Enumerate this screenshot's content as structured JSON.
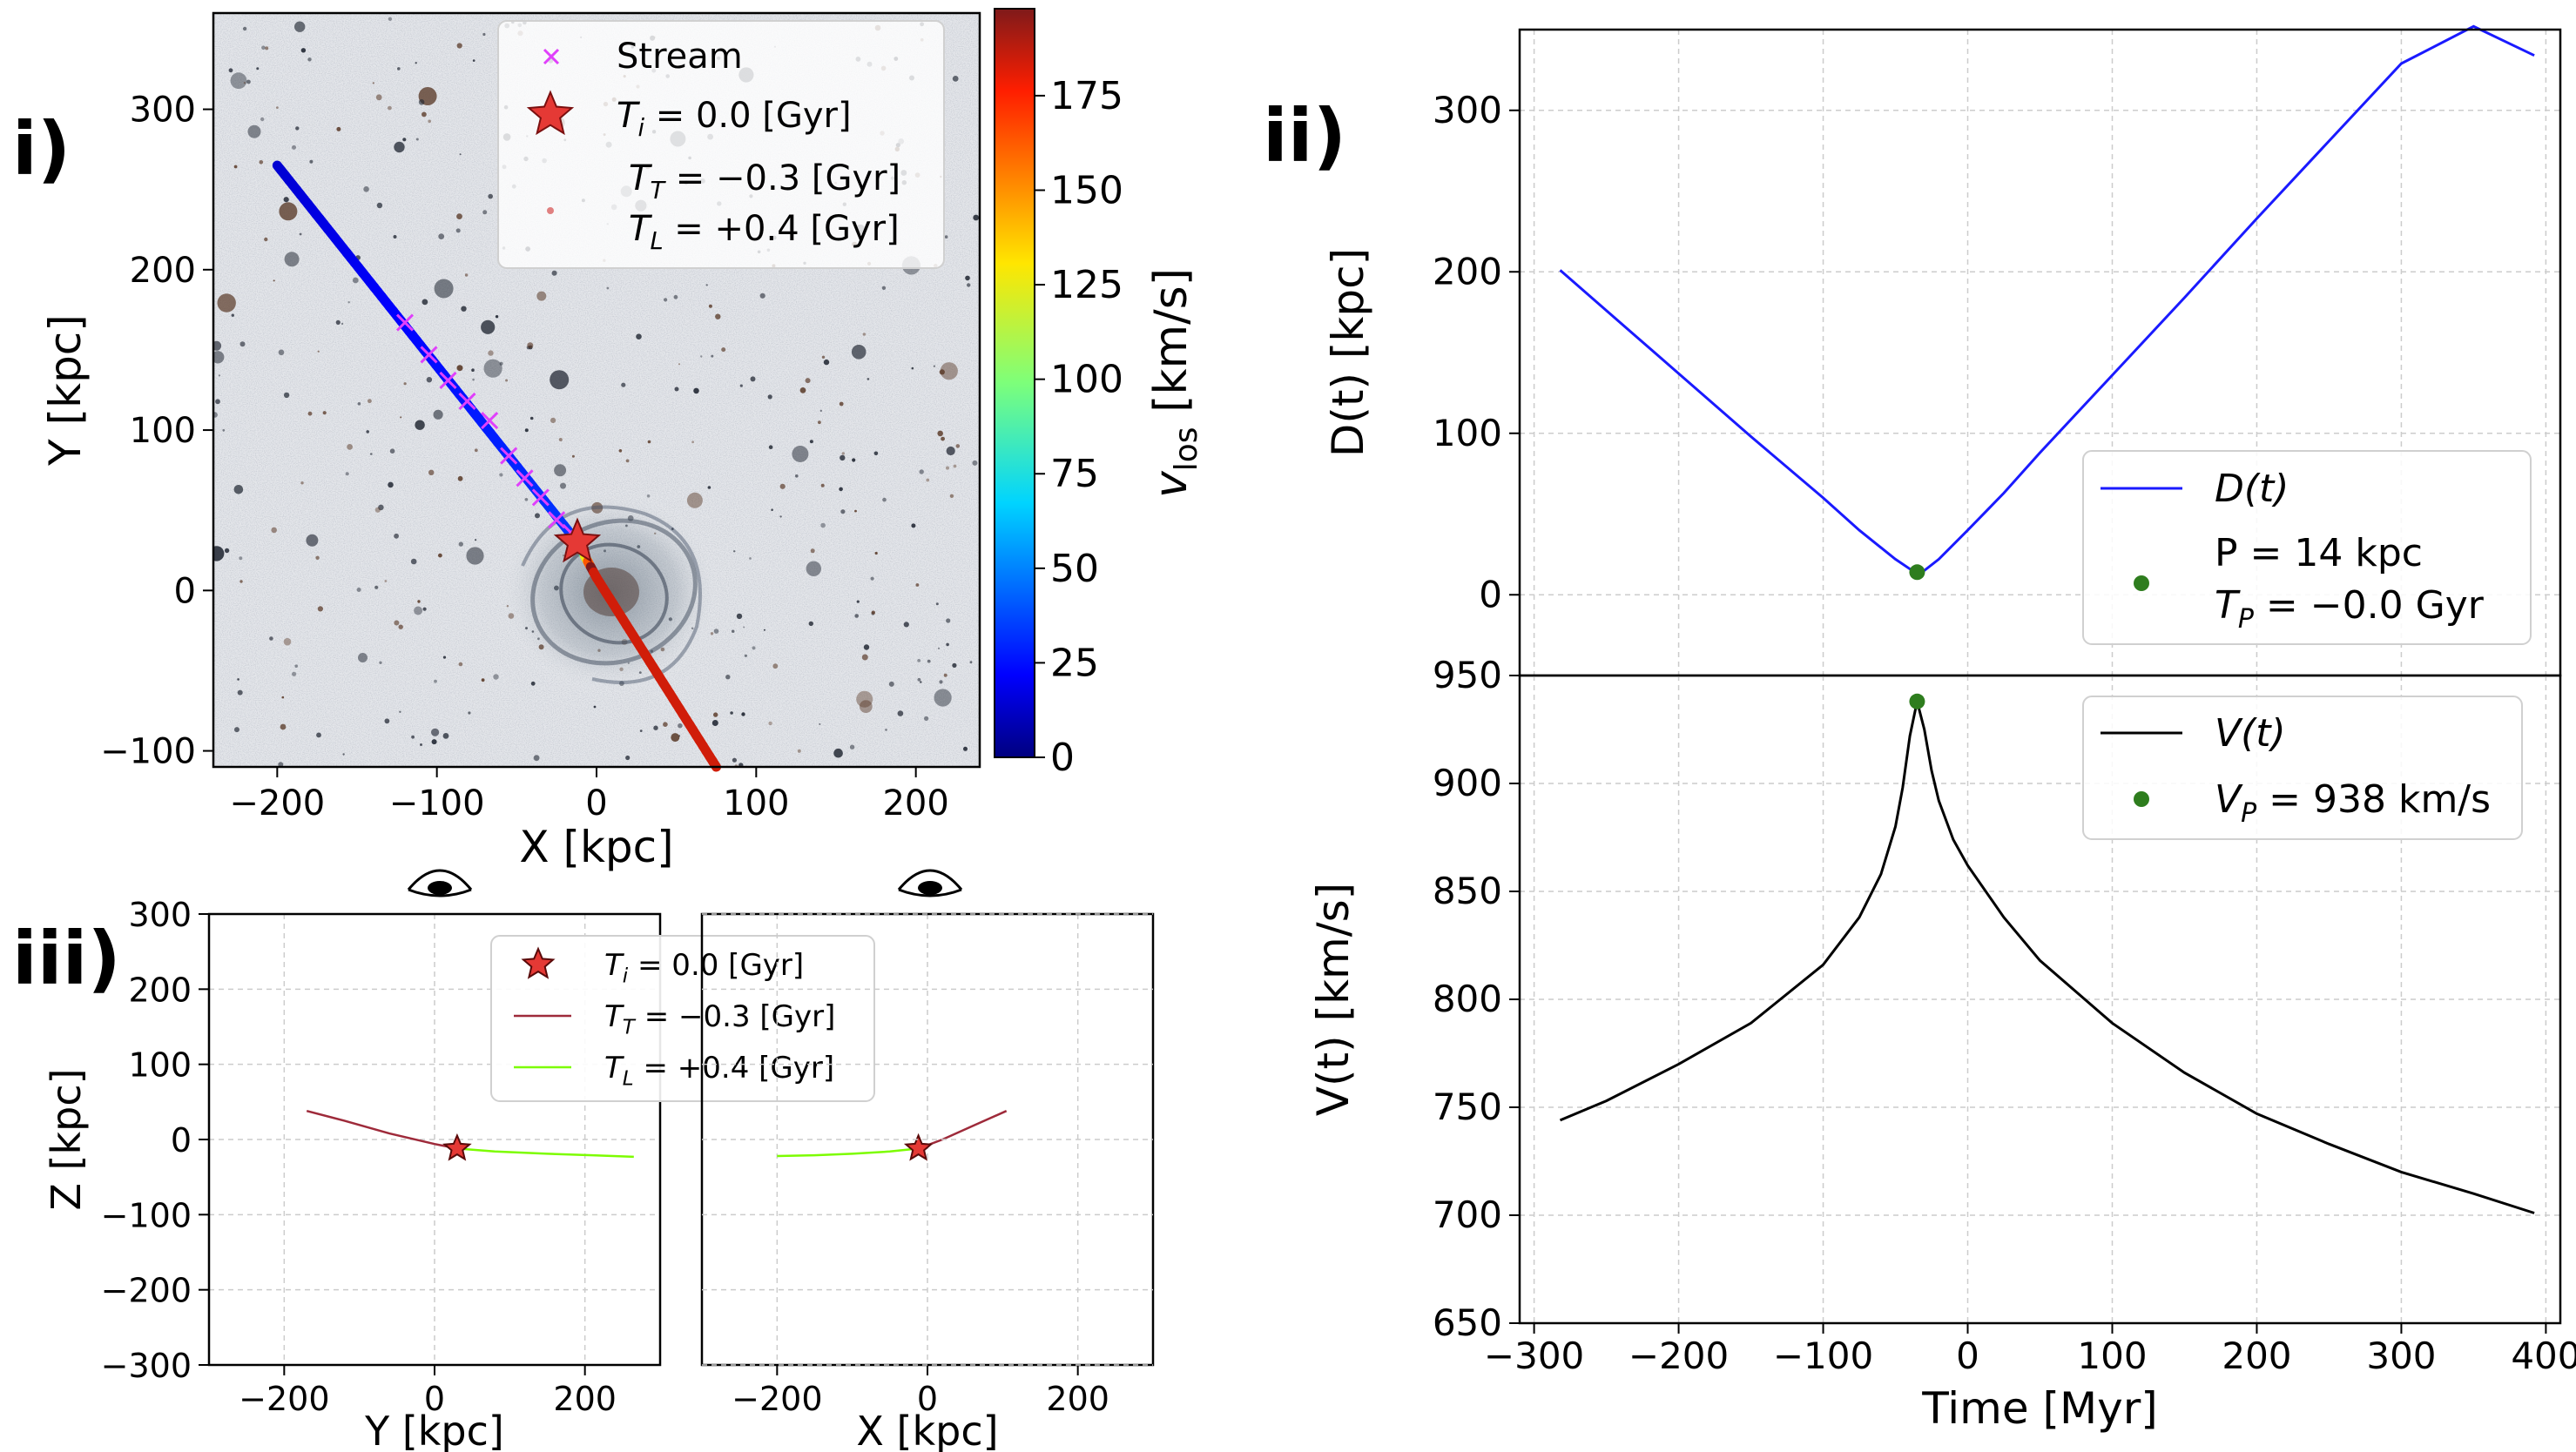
{
  "panel_labels": {
    "i": "i)",
    "ii": "ii)",
    "iii": "iii)"
  },
  "colors": {
    "stream_marker": "#e040fb",
    "star": "#e53935",
    "trailing": "#9e2a3a",
    "leading": "#7cfc00",
    "distance_line": "#1a1aff",
    "velocity_line": "#000000",
    "pericentre_dot": "#2e7d1e",
    "grid": "#cccccc"
  },
  "chart_data": [
    {
      "id": "panel-i",
      "type": "scatter",
      "xlabel": "X [kpc]",
      "ylabel": "Y [kpc]",
      "xlim": [
        -240,
        240
      ],
      "ylim": [
        -110,
        360
      ],
      "xticks": [
        -200,
        -100,
        0,
        100,
        200
      ],
      "yticks": [
        -100,
        0,
        100,
        200,
        300
      ],
      "background": "galaxy-image",
      "stream_path": [
        [
          -200,
          265
        ],
        [
          -12,
          30
        ],
        [
          0,
          8
        ],
        [
          75,
          -110
        ]
      ],
      "stream_colored_by": "v_los",
      "stream_markers_x": [
        -120,
        -105,
        -93,
        -81,
        -67,
        -55,
        -45,
        -35,
        -25,
        -16
      ],
      "stream_markers_y": [
        167,
        147,
        131,
        118,
        106,
        84,
        70,
        58,
        44,
        36
      ],
      "star": {
        "x": -12,
        "y": 30
      },
      "colorbar": {
        "label": "v",
        "label_sub": "los",
        "label_unit": " [km/s]",
        "range": [
          0,
          198
        ],
        "ticks": [
          0,
          25,
          50,
          75,
          100,
          125,
          150,
          175
        ]
      },
      "legend": [
        {
          "marker": "x",
          "label": "Stream"
        },
        {
          "marker": "star",
          "label": "T",
          "sub": "i",
          "eq": " = 0.0 [Gyr]"
        },
        {
          "marker": "none",
          "label": "T",
          "sub": "T",
          "eq": " = −0.3 [Gyr]"
        },
        {
          "marker": "dot",
          "label": "T",
          "sub": "L",
          "eq": " = +0.4 [Gyr]"
        }
      ]
    },
    {
      "id": "panel-ii-top",
      "type": "line",
      "title": "",
      "xlabel": "",
      "ylabel": "D(t) [kpc]",
      "xlim": [
        -310,
        410
      ],
      "ylim": [
        -50,
        350
      ],
      "yticks": [
        0,
        100,
        200,
        300
      ],
      "series": [
        {
          "name": "D(t)",
          "x": [
            -282,
            -250,
            -200,
            -150,
            -100,
            -75,
            -50,
            -40,
            -35,
            -30,
            -20,
            0,
            25,
            50,
            100,
            150,
            200,
            250,
            300,
            350,
            392
          ],
          "y": [
            201,
            176,
            137,
            98,
            60,
            40,
            22,
            16,
            14,
            15,
            22,
            40,
            63,
            88,
            136,
            184,
            233,
            281,
            329,
            352,
            334
          ]
        }
      ],
      "pericentre": {
        "x": -35,
        "y": 14
      },
      "legend": [
        {
          "marker": "line",
          "label": "D(t)"
        },
        {
          "marker": "dot",
          "label": "P = 14 kpc",
          "label2": "T",
          "label2_sub": "P",
          "label2_eq": " = −0.0 Gyr"
        }
      ]
    },
    {
      "id": "panel-ii-bottom",
      "type": "line",
      "xlabel": "Time [Myr]",
      "ylabel": "V(t) [km/s]",
      "xlim": [
        -310,
        410
      ],
      "ylim": [
        650,
        950
      ],
      "xticks": [
        -300,
        -200,
        -100,
        0,
        100,
        200,
        300,
        400
      ],
      "yticks": [
        650,
        700,
        750,
        800,
        850,
        900,
        950
      ],
      "series": [
        {
          "name": "V(t)",
          "x": [
            -282,
            -250,
            -200,
            -150,
            -100,
            -75,
            -60,
            -50,
            -45,
            -40,
            -35,
            -30,
            -25,
            -20,
            -10,
            0,
            25,
            50,
            100,
            150,
            200,
            250,
            300,
            350,
            392
          ],
          "y": [
            744,
            753,
            770,
            789,
            816,
            838,
            858,
            880,
            898,
            922,
            938,
            925,
            906,
            892,
            874,
            862,
            838,
            818,
            789,
            766,
            747,
            733,
            720,
            710,
            701
          ]
        }
      ],
      "pericentre": {
        "x": -35,
        "y": 938
      },
      "legend": [
        {
          "marker": "line",
          "label": "V(t)"
        },
        {
          "marker": "dot",
          "label": "V",
          "sub": "P",
          "eq": " = 938 km/s"
        }
      ]
    },
    {
      "id": "panel-iii-left",
      "type": "line",
      "xlabel": "Y [kpc]",
      "ylabel": "Z [kpc]",
      "xlim": [
        -300,
        300
      ],
      "ylim": [
        -300,
        300
      ],
      "xticks": [
        -200,
        0,
        200
      ],
      "yticks": [
        -300,
        -200,
        -100,
        0,
        100,
        200,
        300
      ],
      "series": [
        {
          "name": "trailing",
          "x": [
            -170,
            -120,
            -60,
            0,
            30
          ],
          "y": [
            38,
            25,
            8,
            -6,
            -12
          ]
        },
        {
          "name": "leading",
          "x": [
            30,
            80,
            150,
            210,
            265
          ],
          "y": [
            -12,
            -16,
            -19,
            -21,
            -23
          ]
        }
      ],
      "star": {
        "x": 30,
        "y": -12
      },
      "legend": [
        {
          "marker": "star",
          "label": "T",
          "sub": "i",
          "eq": " = 0.0 [Gyr]"
        },
        {
          "marker": "trailing-line",
          "label": "T",
          "sub": "T",
          "eq": " = −0.3 [Gyr]"
        },
        {
          "marker": "leading-line",
          "label": "T",
          "sub": "L",
          "eq": " = +0.4 [Gyr]"
        }
      ]
    },
    {
      "id": "panel-iii-right",
      "type": "line",
      "xlabel": "X [kpc]",
      "ylabel": "",
      "xlim": [
        -300,
        300
      ],
      "ylim": [
        -300,
        300
      ],
      "xticks": [
        -200,
        0,
        200
      ],
      "series": [
        {
          "name": "trailing",
          "x": [
            -12,
            20,
            60,
            105
          ],
          "y": [
            -12,
            0,
            18,
            38
          ]
        },
        {
          "name": "leading",
          "x": [
            -200,
            -150,
            -100,
            -50,
            -12
          ],
          "y": [
            -22,
            -21,
            -19,
            -16,
            -12
          ]
        }
      ],
      "star": {
        "x": -12,
        "y": -12
      }
    }
  ]
}
